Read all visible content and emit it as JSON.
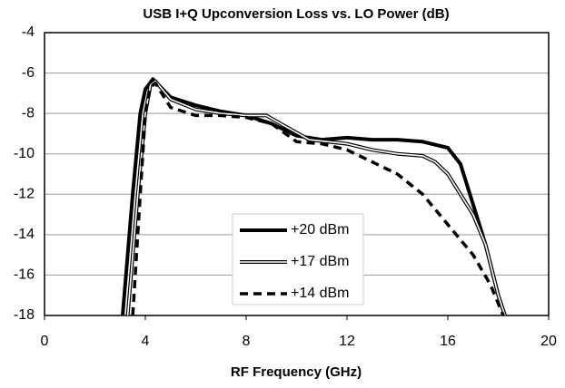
{
  "chart_data": {
    "type": "line",
    "title": "USB I+Q Upconversion Loss vs. LO Power (dB)",
    "xlabel": "RF Frequency (GHz)",
    "xlim": [
      0,
      20
    ],
    "xticks": [
      0,
      4,
      8,
      12,
      16,
      20
    ],
    "ylim": [
      -18,
      -4
    ],
    "yticks": [
      -4,
      -6,
      -8,
      -10,
      -12,
      -14,
      -16,
      -18
    ],
    "grid": true,
    "legend": "center",
    "series": [
      {
        "name": "+20 dBm",
        "color": "#000000",
        "style": "solid",
        "x": [
          3.1,
          3.5,
          3.8,
          4.0,
          4.3,
          5,
          6,
          7,
          8,
          9,
          10,
          11,
          12,
          13,
          14,
          15,
          16,
          16.5,
          17,
          17.5,
          18,
          18.4
        ],
        "values": [
          -18,
          -12,
          -8,
          -6.8,
          -6.3,
          -7.2,
          -7.6,
          -7.9,
          -8.1,
          -8.5,
          -9.1,
          -9.3,
          -9.2,
          -9.3,
          -9.3,
          -9.4,
          -9.7,
          -10.5,
          -12.5,
          -14.5,
          -17.0,
          -18.5
        ]
      },
      {
        "name": "+17 dBm",
        "color": "#000000",
        "style": "double",
        "x": [
          3.3,
          3.7,
          4.0,
          4.2,
          4.4,
          5,
          6,
          7,
          8,
          8.8,
          9.5,
          10.5,
          12,
          13,
          14,
          15,
          15.5,
          16,
          16.5,
          17,
          17.5,
          18,
          18.4
        ],
        "values": [
          -18,
          -12,
          -8,
          -6.6,
          -6.4,
          -7.3,
          -7.8,
          -8.0,
          -8.1,
          -8.1,
          -8.6,
          -9.3,
          -9.5,
          -9.8,
          -10.0,
          -10.1,
          -10.4,
          -11.0,
          -12.0,
          -13.0,
          -14.5,
          -17.0,
          -18.5
        ]
      },
      {
        "name": "+14 dBm",
        "color": "#000000",
        "style": "dashed",
        "x": [
          3.5,
          3.8,
          4.0,
          4.2,
          4.4,
          5,
          6,
          7,
          8,
          9,
          10,
          11,
          12,
          13,
          14,
          15,
          16,
          17,
          17.7,
          18.2,
          18.4
        ],
        "values": [
          -18,
          -12,
          -8,
          -6.7,
          -6.5,
          -7.7,
          -8.1,
          -8.1,
          -8.2,
          -8.5,
          -9.4,
          -9.5,
          -9.8,
          -10.4,
          -11.0,
          -12.0,
          -13.5,
          -15.0,
          -16.5,
          -18.0,
          -18.5
        ]
      }
    ]
  }
}
